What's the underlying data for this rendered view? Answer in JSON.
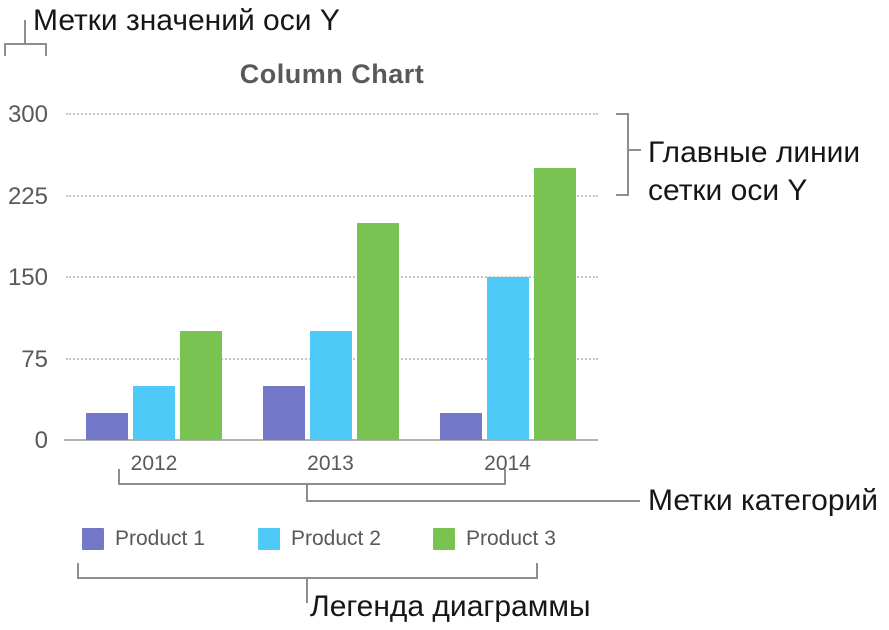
{
  "annotations": {
    "y_value_labels": "Метки значений оси Y",
    "y_gridlines_line1": "Главные линии",
    "y_gridlines_line2": "сетки оси Y",
    "category_labels": "Метки категорий",
    "chart_legend": "Легенда диаграммы"
  },
  "chart_data": {
    "type": "bar",
    "title": "Column Chart",
    "categories": [
      "2012",
      "2013",
      "2014"
    ],
    "series": [
      {
        "name": "Product 1",
        "color": "#7379C8",
        "values": [
          25,
          50,
          25
        ]
      },
      {
        "name": "Product 2",
        "color": "#4FCAF8",
        "values": [
          50,
          100,
          150
        ]
      },
      {
        "name": "Product 3",
        "color": "#78C351",
        "values": [
          100,
          200,
          250
        ]
      }
    ],
    "y_ticks": [
      0,
      75,
      150,
      225,
      300
    ],
    "ylim": [
      0,
      300
    ],
    "grid": "horizontal-dotted",
    "legend_position": "bottom"
  },
  "colors": {
    "bracket_line": "#8e8e8e",
    "gridline": "#c6c6c6",
    "axis_line": "#b3b3b3",
    "muted_text": "#59595b",
    "annotation_text": "#161618"
  }
}
